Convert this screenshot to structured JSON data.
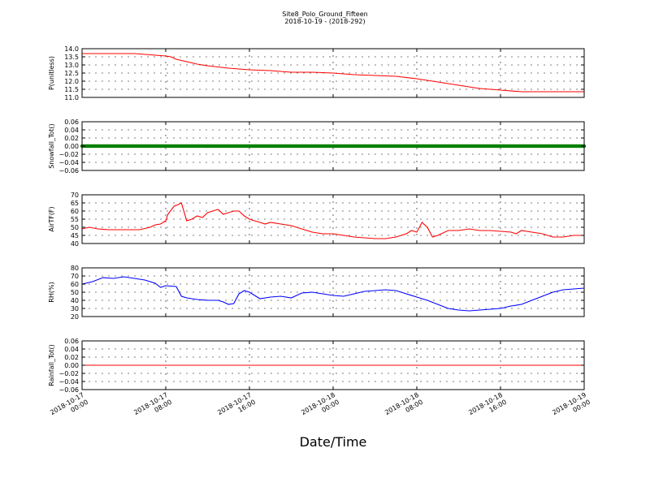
{
  "title": "Site8_Polo_Ground_Fifteen",
  "subtitle": "2018-10-19 - (2018-292)",
  "xlabel": "Date/Time",
  "x_ticks": [
    [
      "2018-10-17",
      "00:00"
    ],
    [
      "2018-10-17",
      "08:00"
    ],
    [
      "2018-10-17",
      "16:00"
    ],
    [
      "2018-10-18",
      "00:00"
    ],
    [
      "2018-10-18",
      "08:00"
    ],
    [
      "2018-10-18",
      "16:00"
    ],
    [
      "2018-10-19",
      "00:00"
    ]
  ],
  "colors": {
    "red": "#ff0000",
    "green": "#008000",
    "blue": "#0000ff",
    "axis": "#000000"
  },
  "chart_data": [
    {
      "type": "line",
      "ylabel": "P(unitless)",
      "ylim": [
        11.0,
        14.0
      ],
      "yticks": [
        "11.0",
        "11.5",
        "12.0",
        "12.5",
        "13.0",
        "13.5",
        "14.0"
      ],
      "grid": true,
      "series": [
        {
          "color": "#ff0000",
          "x": [
            0,
            2,
            4,
            5,
            6,
            7,
            8,
            8.5,
            9,
            10,
            11,
            12,
            14,
            16,
            18,
            20,
            22,
            24,
            26,
            28,
            30,
            32,
            34,
            36,
            38,
            40,
            42,
            44,
            46,
            48
          ],
          "values": [
            13.7,
            13.7,
            13.7,
            13.7,
            13.65,
            13.6,
            13.55,
            13.5,
            13.35,
            13.2,
            13.05,
            12.95,
            12.8,
            12.7,
            12.65,
            12.55,
            12.55,
            12.5,
            12.4,
            12.35,
            12.3,
            12.15,
            11.95,
            11.75,
            11.55,
            11.45,
            11.35,
            11.35,
            11.35,
            11.35
          ]
        }
      ]
    },
    {
      "type": "scatter",
      "ylabel": "Snowfall_Tot()",
      "ylim": [
        -0.06,
        0.06
      ],
      "yticks": [
        "−0.06",
        "−0.04",
        "−0.02",
        "0.00",
        "0.02",
        "0.04",
        "0.06"
      ],
      "grid": true,
      "series": [
        {
          "color": "#008000",
          "x_range": [
            0,
            48
          ],
          "value": 0.0
        }
      ]
    },
    {
      "type": "line",
      "ylabel": "AirTF(F)",
      "ylim": [
        40,
        70
      ],
      "yticks": [
        "40",
        "45",
        "50",
        "55",
        "60",
        "65",
        "70"
      ],
      "grid": true,
      "series": [
        {
          "color": "#ff0000",
          "x": [
            0,
            0.7,
            1.5,
            2.5,
            4,
            5.5,
            6.5,
            7,
            7.5,
            8,
            8.2,
            8.8,
            9.2,
            9.5,
            10,
            10.5,
            11,
            11.5,
            12,
            12.5,
            13,
            13.5,
            14,
            14.5,
            15,
            15.5,
            16,
            16.5,
            17,
            17.5,
            18,
            19,
            20,
            21,
            22,
            23,
            24,
            25,
            26,
            27,
            28,
            29,
            30,
            31,
            31.5,
            32,
            32.5,
            33,
            33.5,
            34,
            35,
            36,
            37,
            38,
            39,
            40,
            41,
            41.5,
            42,
            43,
            44,
            45,
            46,
            47,
            48
          ],
          "values": [
            49,
            50,
            49,
            48.5,
            48.5,
            48.5,
            50,
            51.5,
            52,
            54,
            58,
            63,
            64,
            65,
            54,
            55,
            57,
            56,
            59,
            60,
            61,
            58,
            59,
            60,
            60,
            57,
            55,
            54,
            53,
            52,
            53,
            52,
            51,
            49,
            47,
            46,
            46,
            45,
            44,
            43.5,
            43,
            43,
            44,
            46,
            48,
            47,
            53,
            50,
            44,
            45,
            48,
            48,
            49,
            48,
            48,
            47.5,
            47,
            46,
            48,
            47,
            46,
            44,
            44,
            45,
            45
          ]
        }
      ]
    },
    {
      "type": "line",
      "ylabel": "RH(%)",
      "ylim": [
        20,
        80
      ],
      "yticks": [
        "20",
        "30",
        "40",
        "50",
        "60",
        "70",
        "80"
      ],
      "grid": true,
      "series": [
        {
          "color": "#0000ff",
          "x": [
            0,
            1,
            2,
            3,
            4,
            5,
            6,
            7,
            7.5,
            8,
            9,
            9.5,
            10,
            11,
            12,
            13,
            13.5,
            14,
            14.5,
            15,
            15.5,
            16,
            17,
            18,
            19,
            20,
            21,
            22,
            23,
            24,
            25,
            26,
            27,
            28,
            29,
            30,
            31,
            32,
            33,
            34,
            35,
            36,
            37,
            38,
            39,
            40,
            41,
            42,
            43,
            44,
            45,
            46,
            47,
            48
          ],
          "values": [
            60,
            63,
            68,
            67,
            69,
            67,
            65,
            61,
            56,
            58,
            57,
            45,
            43,
            41,
            40,
            40,
            38,
            35,
            36,
            48,
            52,
            50,
            42,
            44,
            45,
            43,
            49,
            50,
            48,
            46,
            45,
            48,
            51,
            52,
            53,
            52,
            48,
            44,
            40,
            35,
            30,
            28,
            27,
            28,
            29,
            30,
            33,
            35,
            40,
            45,
            50,
            53,
            54,
            55
          ]
        }
      ]
    },
    {
      "type": "line",
      "ylabel": "Rainfall_Tot()",
      "ylim": [
        -0.06,
        0.06
      ],
      "yticks": [
        "−0.06",
        "−0.04",
        "−0.02",
        "0.00",
        "0.02",
        "0.04",
        "0.06"
      ],
      "grid": true,
      "series": [
        {
          "color": "#ff0000",
          "x": [
            0,
            48
          ],
          "values": [
            0.0,
            0.0
          ]
        }
      ]
    }
  ]
}
